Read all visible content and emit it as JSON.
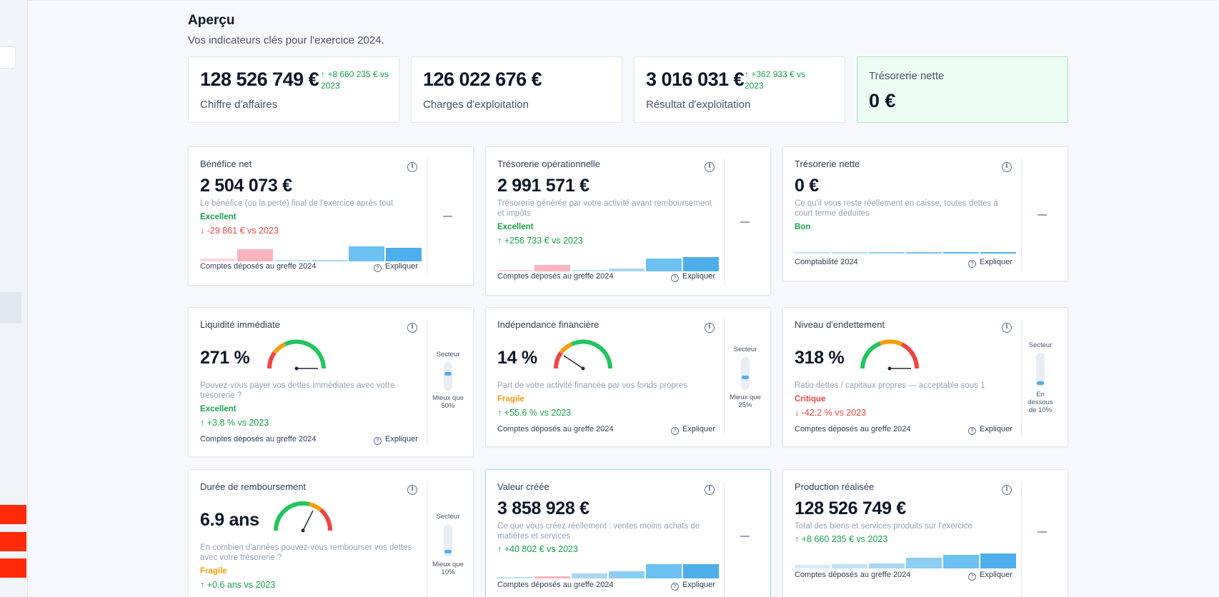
{
  "header": {
    "title": "Aperçu",
    "subtitle": "Vos indicateurs clés pour l'exercice 2024."
  },
  "kpis": [
    {
      "value": "128 526 749 €",
      "delta": "↑ +8 660 235 € vs 2023",
      "label": "Chiffre d'affaires"
    },
    {
      "value": "126 022 676 €",
      "delta": "",
      "label": "Charges d'exploitation"
    },
    {
      "value": "3 016 031 €",
      "delta": "↑ +362 933 € vs 2023",
      "label": "Résultat d'exploitation"
    },
    {
      "title": "Trésorerie nette",
      "value": "0 €"
    }
  ],
  "explain_label": "Expliquer",
  "cards": {
    "benefice": {
      "title": "Bénéfice net",
      "value": "2 504 073 €",
      "desc": "Le bénéfice (ou la perte) final de l'exercice après tout",
      "status": "Excellent",
      "delta": "↓ -29 861 € vs 2023",
      "source": "Comptes déposés au greffe 2024"
    },
    "tresop": {
      "title": "Trésorerie opérationnelle",
      "value": "2 991 571 €",
      "desc": "Trésorerie générée par votre activité avant remboursement et impôts",
      "status": "Excellent",
      "delta": "↑ +256 733 € vs 2023",
      "source": "Comptes déposés au greffe 2024"
    },
    "tresnet": {
      "title": "Trésorerie nette",
      "value": "0 €",
      "desc": "Ce qu'il vous reste réellement en caisse, toutes dettes à court terme déduites",
      "status": "Bon",
      "source": "Comptabilité 2024"
    },
    "liquidite": {
      "title": "Liquidité immédiate",
      "value": "271 %",
      "desc": "Pouvez-vous payer vos dettes immédiates avec votre trésorerie ?",
      "status": "Excellent",
      "delta": "↑ +3.8 % vs 2023",
      "source": "Comptes déposés au greffe 2024",
      "sector_top": "Secteur",
      "sector_bottom": "Mieux que 50%",
      "sector_level": 0.6
    },
    "independance": {
      "title": "Indépendance financière",
      "value": "14 %",
      "desc": "Part de votre activité financée par vos fonds propres",
      "status": "Fragile",
      "delta": "↑ +55.6 % vs 2023",
      "source": "Comptes déposés au greffe 2024",
      "sector_top": "Secteur",
      "sector_bottom": "Mieux que 25%",
      "sector_level": 0.4
    },
    "endettement": {
      "title": "Niveau d'endettement",
      "value": "318 %",
      "desc": "Ratio dettes / capitaux propres — acceptable sous 1",
      "status": "Critique",
      "delta": "↓ -42.2 % vs 2023",
      "source": "Comptes déposés au greffe 2024",
      "sector_top": "Secteur",
      "sector_bottom": "En dessous de 10%",
      "sector_level": 0.1
    },
    "remboursement": {
      "title": "Durée de remboursement",
      "value": "6.9 ans",
      "desc": "En combien d'années pouvez-vous rembourser vos dettes avec votre trésorerie ?",
      "status": "Fragile",
      "delta": "↑ +0.6 ans vs 2023",
      "sector_top": "Secteur",
      "sector_bottom": "Mieux que 10%",
      "sector_level": 0.1
    },
    "valeur": {
      "title": "Valeur créée",
      "value": "3 858 928 €",
      "desc": "Ce que vous créez réellement : ventes moins achats de matières et services",
      "delta": "↑ +40 802 € vs 2023",
      "source": "Comptes déposés au greffe 2024"
    },
    "production": {
      "title": "Production réalisée",
      "value": "128 526 749 €",
      "desc": "Total des biens et services produits sur l'exercice",
      "delta": "↑ +8 660 235 € vs 2023",
      "source": "Comptes déposés au greffe 2024"
    }
  },
  "colors": {
    "good": "#16a34a",
    "warn": "#f59e0b",
    "bad": "#ef4444",
    "bar_blue": "#4eaeea",
    "bar_pink": "#f9b4bd"
  }
}
